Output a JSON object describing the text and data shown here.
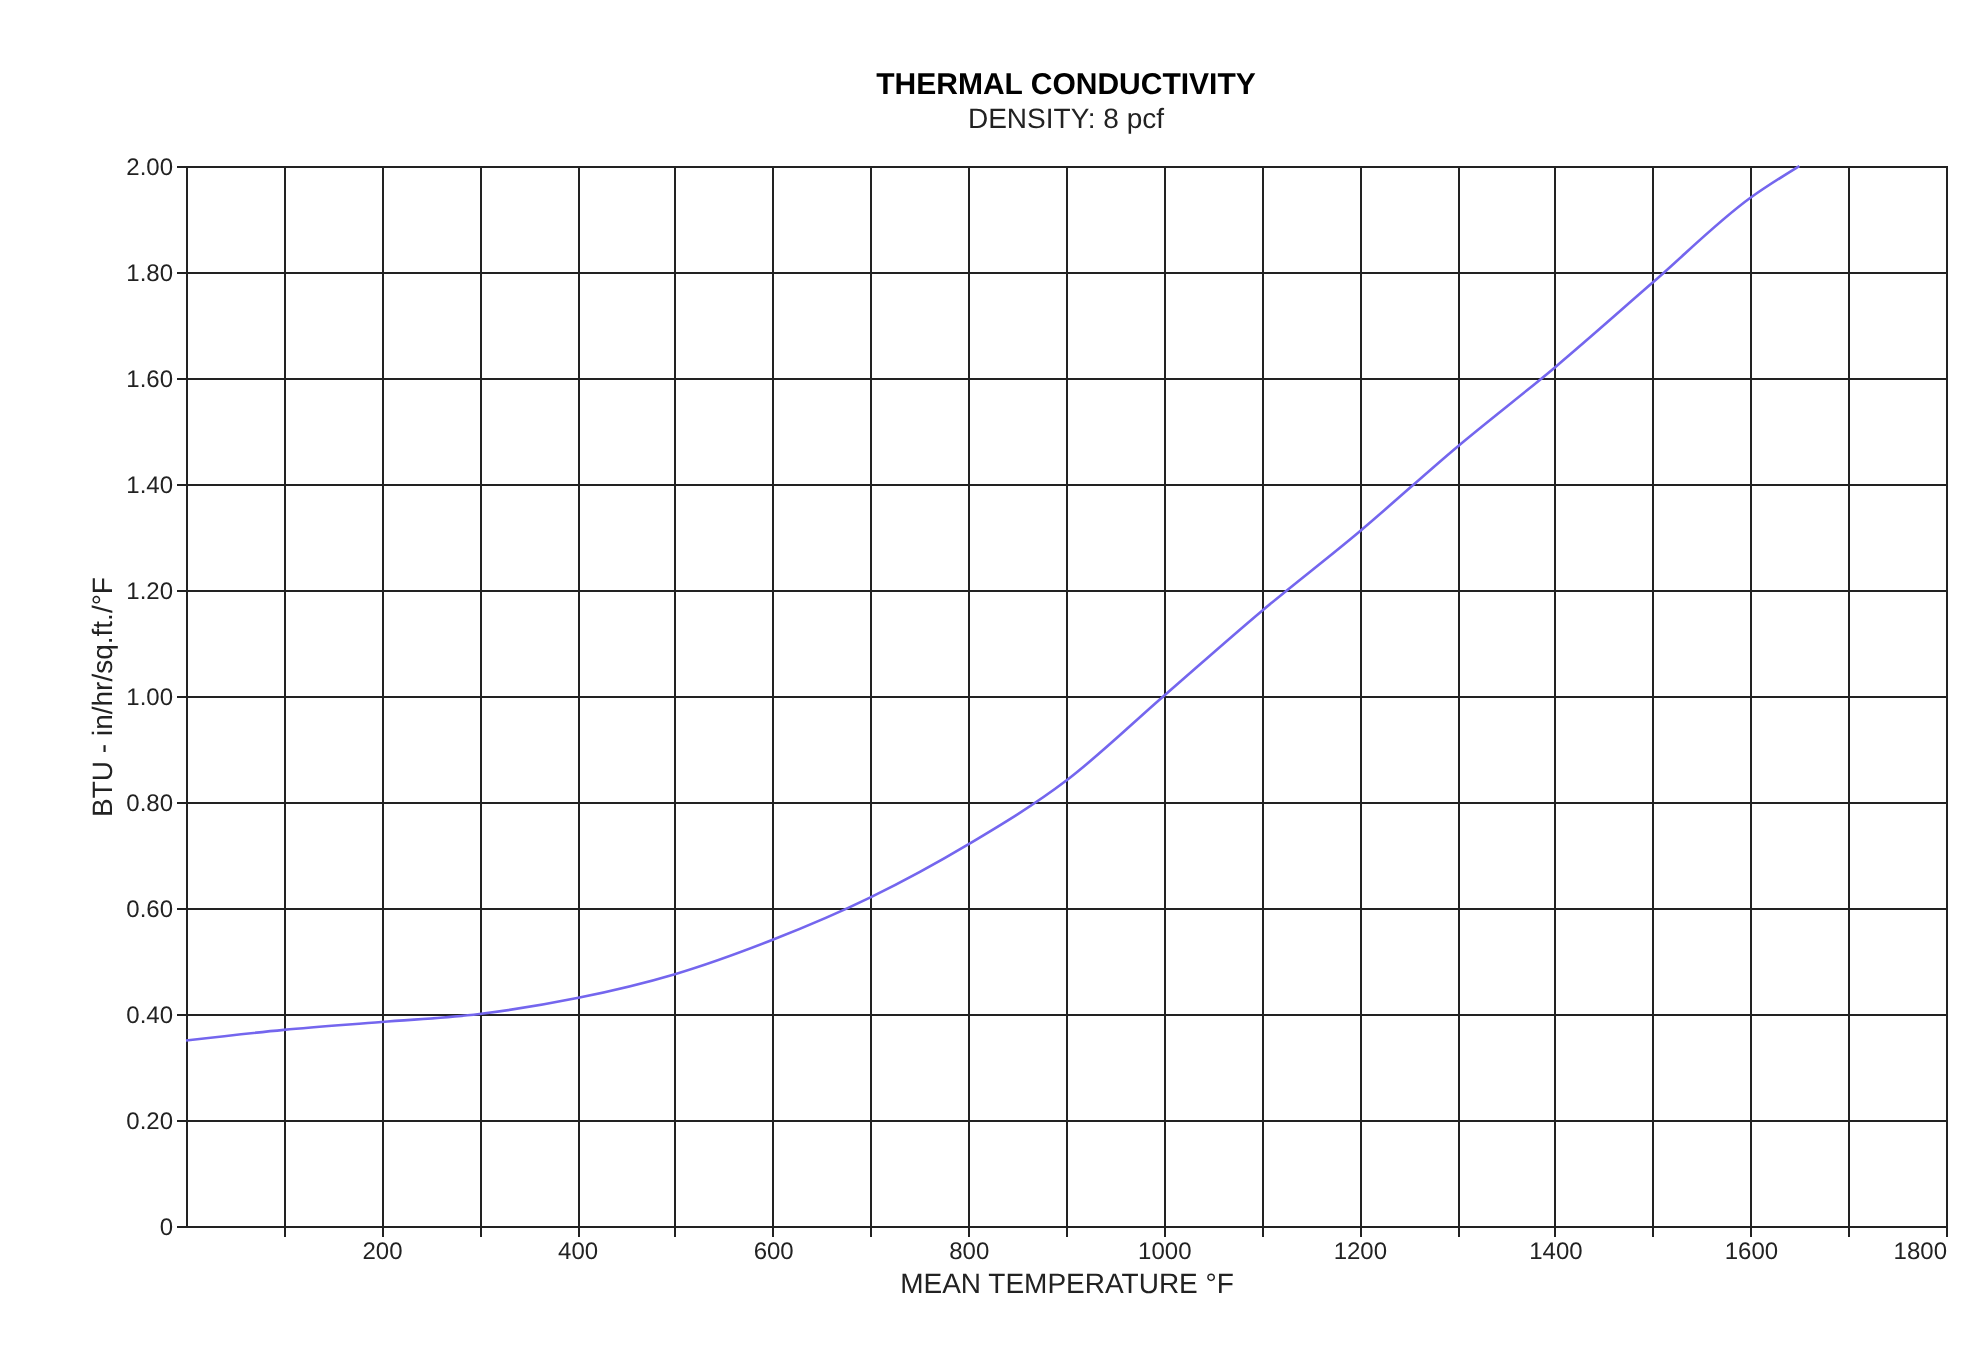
{
  "chart_data": {
    "type": "line",
    "title": "THERMAL CONDUCTIVITY",
    "subtitle": "DENSITY:  8 pcf",
    "xlabel": "MEAN TEMPERATURE   °F",
    "ylabel": "BTU - in/hr/sq.ft./°F",
    "x": [
      0,
      100,
      200,
      300,
      400,
      500,
      600,
      700,
      800,
      900,
      1000,
      1100,
      1200,
      1300,
      1400,
      1500,
      1600,
      1650
    ],
    "series": [
      {
        "color": "#7466ee",
        "values": [
          0.35,
          0.37,
          0.385,
          0.4,
          0.43,
          0.475,
          0.54,
          0.62,
          0.72,
          0.84,
          1.0,
          1.16,
          1.31,
          1.47,
          1.62,
          1.78,
          1.94,
          2.0
        ]
      }
    ],
    "xlim": [
      0,
      1800
    ],
    "xticks": [
      {
        "value": 100,
        "label": null
      },
      200,
      {
        "value": 300,
        "label": null
      },
      400,
      {
        "value": 500,
        "label": null
      },
      600,
      {
        "value": 700,
        "label": null
      },
      800,
      {
        "value": 900,
        "label": null
      },
      1000,
      {
        "value": 1100,
        "label": null
      },
      1200,
      {
        "value": 1300,
        "label": null
      },
      1400,
      {
        "value": 1500,
        "label": null
      },
      1600,
      {
        "value": 1700,
        "label": null
      },
      1800
    ],
    "ylim": [
      0,
      2
    ],
    "yticks": [
      0,
      {
        "value": 0.2,
        "label": "0.20"
      },
      {
        "value": 0.4,
        "label": "0.40"
      },
      {
        "value": 0.6,
        "label": "0.60"
      },
      {
        "value": 0.8,
        "label": "0.80"
      },
      {
        "value": 1,
        "label": "1.00"
      },
      {
        "value": 1.2,
        "label": "1.20"
      },
      {
        "value": 1.4,
        "label": "1.40"
      },
      {
        "value": 1.6,
        "label": "1.60"
      },
      {
        "value": 1.8,
        "label": "1.80"
      },
      {
        "value": 2,
        "label": "2.00"
      }
    ],
    "grid": true,
    "marker": "none",
    "line_style": "solid"
  }
}
